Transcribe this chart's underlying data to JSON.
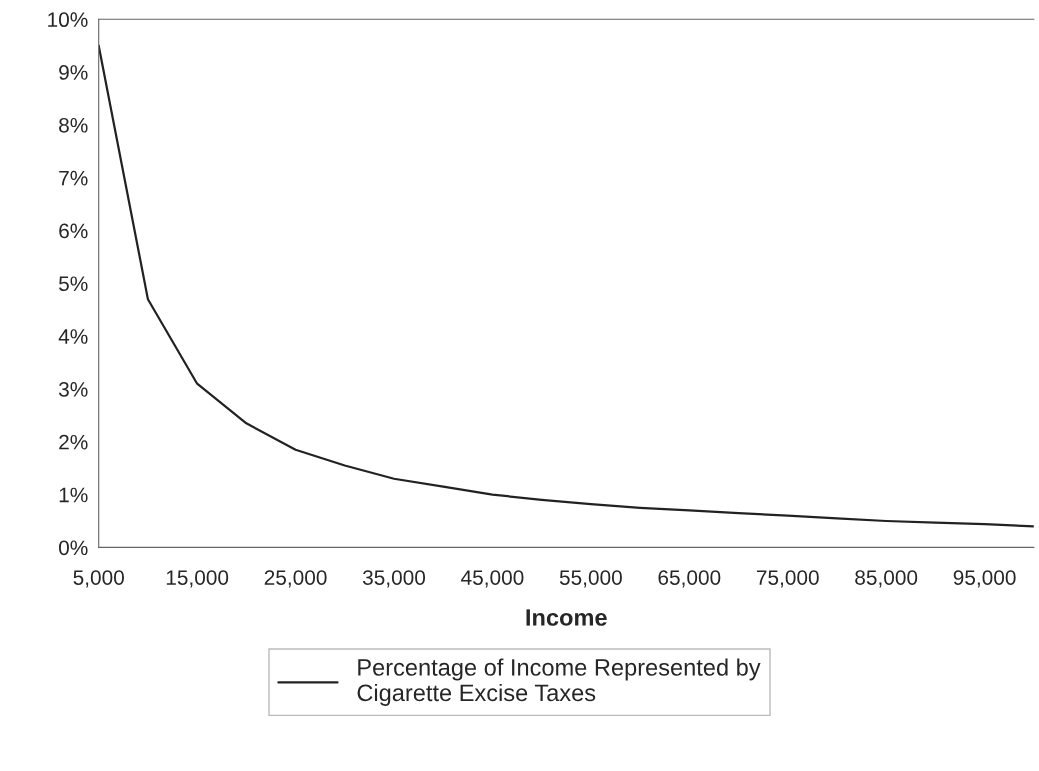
{
  "chart_data": {
    "type": "line",
    "xlabel": "Income",
    "x": [
      5000,
      10000,
      15000,
      20000,
      25000,
      30000,
      35000,
      40000,
      45000,
      50000,
      55000,
      60000,
      65000,
      70000,
      75000,
      80000,
      85000,
      90000,
      95000,
      100000
    ],
    "series": [
      {
        "name": "Percentage of Income Represented by\nCigarette Excise Taxes",
        "color": "#222222",
        "values": [
          9.5,
          4.7,
          3.1,
          2.35,
          1.85,
          1.55,
          1.3,
          1.15,
          1.0,
          0.9,
          0.82,
          0.75,
          0.7,
          0.65,
          0.6,
          0.55,
          0.5,
          0.47,
          0.44,
          0.4
        ]
      }
    ],
    "xlim": [
      5000,
      100000
    ],
    "xticks": [
      {
        "value": 5000,
        "label": "5,000"
      },
      {
        "value": 15000,
        "label": "15,000"
      },
      {
        "value": 25000,
        "label": "25,000"
      },
      {
        "value": 35000,
        "label": "35,000"
      },
      {
        "value": 45000,
        "label": "45,000"
      },
      {
        "value": 55000,
        "label": "55,000"
      },
      {
        "value": 65000,
        "label": "65,000"
      },
      {
        "value": 75000,
        "label": "75,000"
      },
      {
        "value": 85000,
        "label": "85,000"
      },
      {
        "value": 95000,
        "label": "95,000"
      }
    ],
    "ylim": [
      0,
      10
    ],
    "yticks": [
      {
        "value": 0,
        "label": "0%"
      },
      {
        "value": 1,
        "label": "1%"
      },
      {
        "value": 2,
        "label": "2%"
      },
      {
        "value": 3,
        "label": "3%"
      },
      {
        "value": 4,
        "label": "4%"
      },
      {
        "value": 5,
        "label": "5%"
      },
      {
        "value": 6,
        "label": "6%"
      },
      {
        "value": 7,
        "label": "7%"
      },
      {
        "value": 8,
        "label": "8%"
      },
      {
        "value": 9,
        "label": "9%"
      },
      {
        "value": 10,
        "label": "10%"
      }
    ],
    "grid": false,
    "legend": "bottom",
    "marker": "none",
    "line_style": "solid"
  }
}
